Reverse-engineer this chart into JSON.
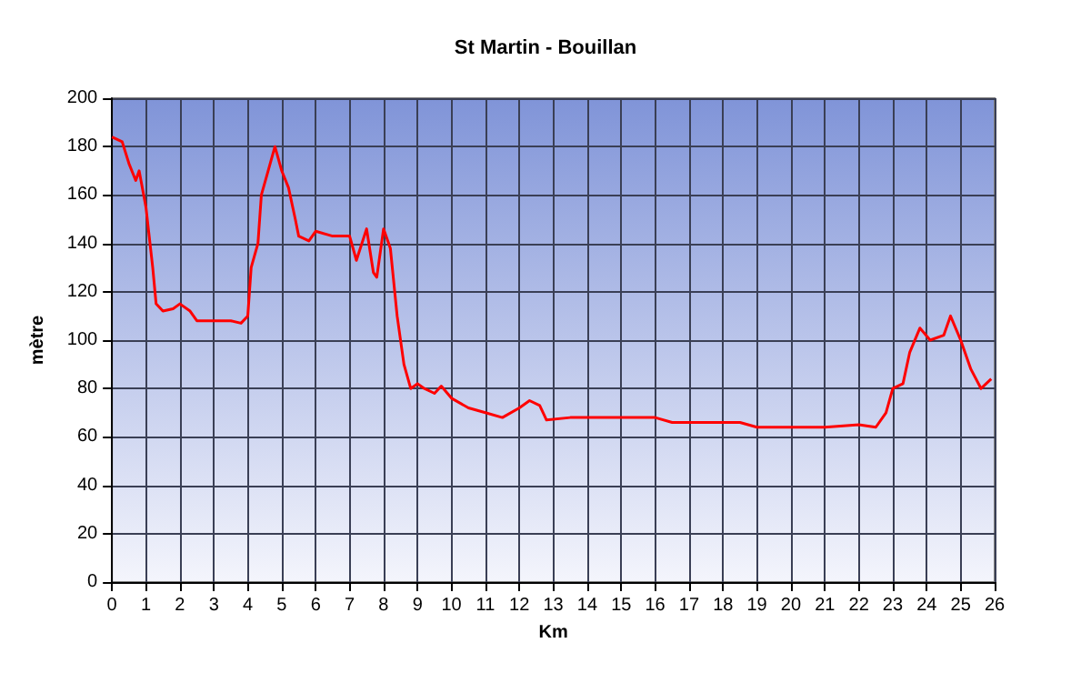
{
  "chart_data": {
    "type": "line",
    "title": "St Martin - Bouillan",
    "xlabel": "Km",
    "ylabel": "mètre",
    "xlim": [
      0,
      26
    ],
    "xticks": [
      0,
      1,
      2,
      3,
      4,
      5,
      6,
      7,
      8,
      9,
      10,
      11,
      12,
      13,
      14,
      15,
      16,
      17,
      18,
      19,
      20,
      21,
      22,
      23,
      24,
      25,
      26
    ],
    "ylim": [
      0,
      200
    ],
    "yticks": [
      0,
      20,
      40,
      60,
      80,
      100,
      120,
      140,
      160,
      180,
      200
    ],
    "grid": true,
    "marker": "none",
    "line_style": "solid",
    "series": [
      {
        "color": "#ff0000",
        "x": [
          0,
          0.3,
          0.5,
          0.7,
          0.8,
          1.0,
          1.2,
          1.3,
          1.5,
          1.8,
          2.0,
          2.3,
          2.5,
          3,
          3.5,
          3.8,
          4.0,
          4.1,
          4.3,
          4.4,
          4.6,
          4.8,
          5.0,
          5.2,
          5.4,
          5.5,
          5.8,
          6,
          6.5,
          7,
          7.2,
          7.5,
          7.7,
          7.8,
          8.0,
          8.2,
          8.4,
          8.6,
          8.8,
          9,
          9.2,
          9.5,
          9.7,
          10,
          10.5,
          11,
          11.5,
          12,
          12.3,
          12.6,
          12.8,
          13.5,
          14,
          15,
          16,
          16.5,
          17,
          18,
          18.5,
          19,
          20,
          21,
          22,
          22.5,
          22.8,
          23,
          23.3,
          23.5,
          23.8,
          24.1,
          24.5,
          24.7,
          25,
          25.3,
          25.6,
          25.9
        ],
        "values": [
          184,
          182,
          173,
          166,
          170,
          155,
          130,
          115,
          112,
          113,
          115,
          112,
          108,
          108,
          108,
          107,
          110,
          130,
          140,
          160,
          170,
          180,
          170,
          163,
          150,
          143,
          141,
          145,
          143,
          143,
          133,
          146,
          128,
          126,
          146,
          138,
          110,
          90,
          80,
          82,
          80,
          78,
          81,
          76,
          72,
          70,
          68,
          72,
          75,
          73,
          67,
          68,
          68,
          68,
          68,
          66,
          66,
          66,
          66,
          64,
          64,
          64,
          65,
          64,
          70,
          80,
          82,
          95,
          105,
          100,
          102,
          110,
          100,
          88,
          80,
          84
        ]
      }
    ]
  }
}
